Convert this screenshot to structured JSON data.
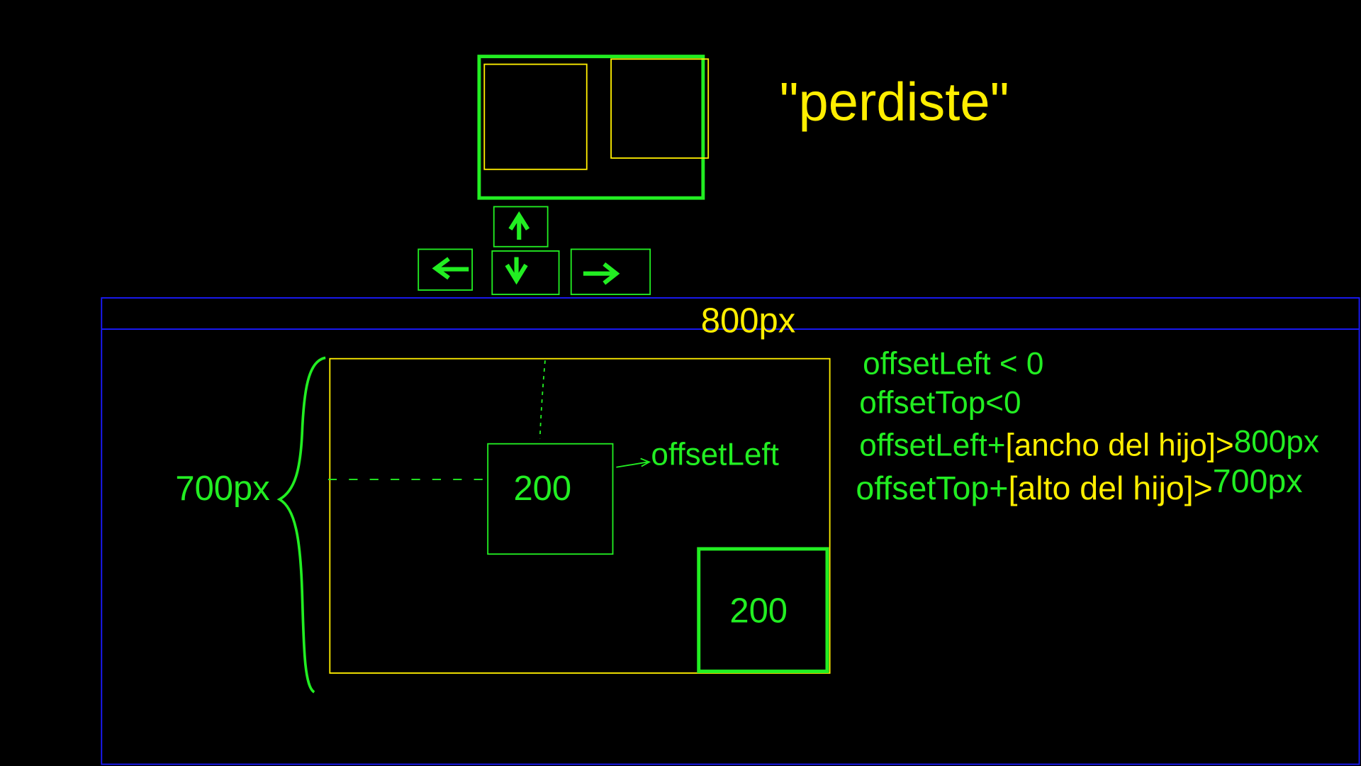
{
  "title": "\"perdiste\"",
  "width_label": "800px",
  "height_label": "700px",
  "boxes": [
    "200",
    "200"
  ],
  "arrow_label": "offsetLeft",
  "conditions": [
    {
      "parts": [
        "offsetLeft < 0"
      ]
    },
    {
      "parts": [
        "offsetTop<0"
      ]
    },
    {
      "parts": [
        "offsetLeft+",
        "[ancho del hijo]>",
        "800px"
      ]
    },
    {
      "parts": [
        "offsetTop+",
        "[alto del hijo]>",
        "700px"
      ]
    }
  ]
}
